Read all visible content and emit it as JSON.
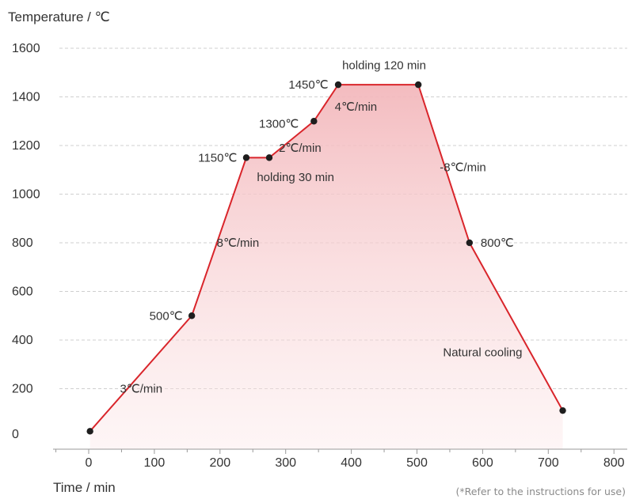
{
  "chart_data": {
    "type": "line",
    "ylabel": "Temperature / ℃",
    "xlabel": "Time / min",
    "xlim": [
      -50,
      800
    ],
    "ylim": [
      -50,
      1600
    ],
    "x_ticks": [
      0,
      100,
      200,
      300,
      400,
      500,
      600,
      700,
      800
    ],
    "y_ticks": [
      0,
      200,
      400,
      600,
      800,
      1000,
      1200,
      1400,
      1600
    ],
    "grid": "horizontal dashed",
    "line_color": "#d9252b",
    "fill_color": "#f3b8bc",
    "series": [
      {
        "x": [
          2,
          157,
          240,
          275,
          343,
          380,
          502,
          580,
          722
        ],
        "y": [
          25,
          500,
          1150,
          1150,
          1300,
          1450,
          1450,
          800,
          110
        ]
      }
    ],
    "annotations": [
      {
        "text": "3℃/min",
        "x": 80,
        "y": 200,
        "anchor": "middle"
      },
      {
        "text": "500℃",
        "x": 143,
        "y": 500,
        "anchor": "end"
      },
      {
        "text": "8℃/min",
        "x": 195,
        "y": 800,
        "anchor": "start"
      },
      {
        "text": "1150℃",
        "x": 226,
        "y": 1150,
        "anchor": "end"
      },
      {
        "text": "holding 30 min",
        "x": 315,
        "y": 1070,
        "anchor": "middle"
      },
      {
        "text": "2℃/min",
        "x": 322,
        "y": 1190,
        "anchor": "middle"
      },
      {
        "text": "1300℃",
        "x": 320,
        "y": 1290,
        "anchor": "end"
      },
      {
        "text": "1450℃",
        "x": 365,
        "y": 1450,
        "anchor": "end"
      },
      {
        "text": "4℃/min",
        "x": 407,
        "y": 1360,
        "anchor": "middle"
      },
      {
        "text": "holding 120 min",
        "x": 450,
        "y": 1530,
        "anchor": "middle"
      },
      {
        "text": "-8℃/min",
        "x": 570,
        "y": 1110,
        "anchor": "middle"
      },
      {
        "text": "800℃",
        "x": 597,
        "y": 800,
        "anchor": "start"
      },
      {
        "text": "Natural cooling",
        "x": 600,
        "y": 350,
        "anchor": "middle"
      }
    ],
    "footnote": "(*Refer to the instructions for use)"
  }
}
